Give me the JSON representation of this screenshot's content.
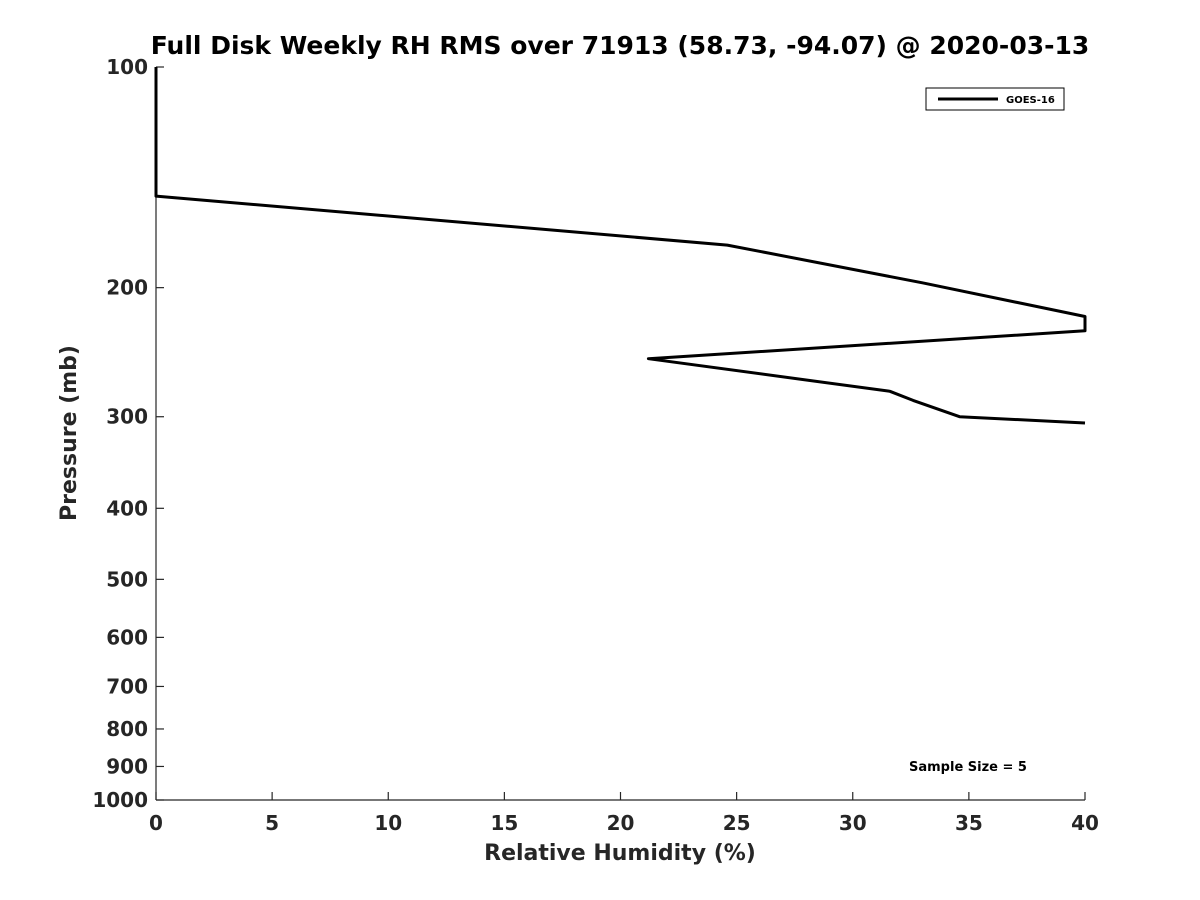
{
  "chart_data": {
    "type": "line",
    "title": "Full Disk Weekly RH RMS over 71913 (58.73, -94.07) @ 2020-03-13",
    "xlabel": "Relative Humidity (%)",
    "ylabel": "Pressure (mb)",
    "xlim": [
      0,
      40
    ],
    "ylim": [
      1000,
      100
    ],
    "yscale": "log",
    "y_reversed": true,
    "grid": false,
    "legend_position": "top-right",
    "x_ticks": [
      "0",
      "5",
      "10",
      "15",
      "20",
      "25",
      "30",
      "35",
      "40"
    ],
    "y_ticks": [
      "100",
      "200",
      "300",
      "400",
      "500",
      "600",
      "700",
      "800",
      "900",
      "1000"
    ],
    "series": [
      {
        "name": "GOES-16",
        "color": "#000000",
        "x": [
          0,
          0,
          24.6,
          33.0,
          40.0,
          40.0,
          21.2,
          31.6,
          32.6,
          34.6,
          40.0
        ],
        "y": [
          100,
          150,
          175,
          197,
          219,
          229,
          250,
          277,
          285,
          300,
          306
        ]
      }
    ],
    "annotations": [
      "Sample Size = 5"
    ]
  }
}
